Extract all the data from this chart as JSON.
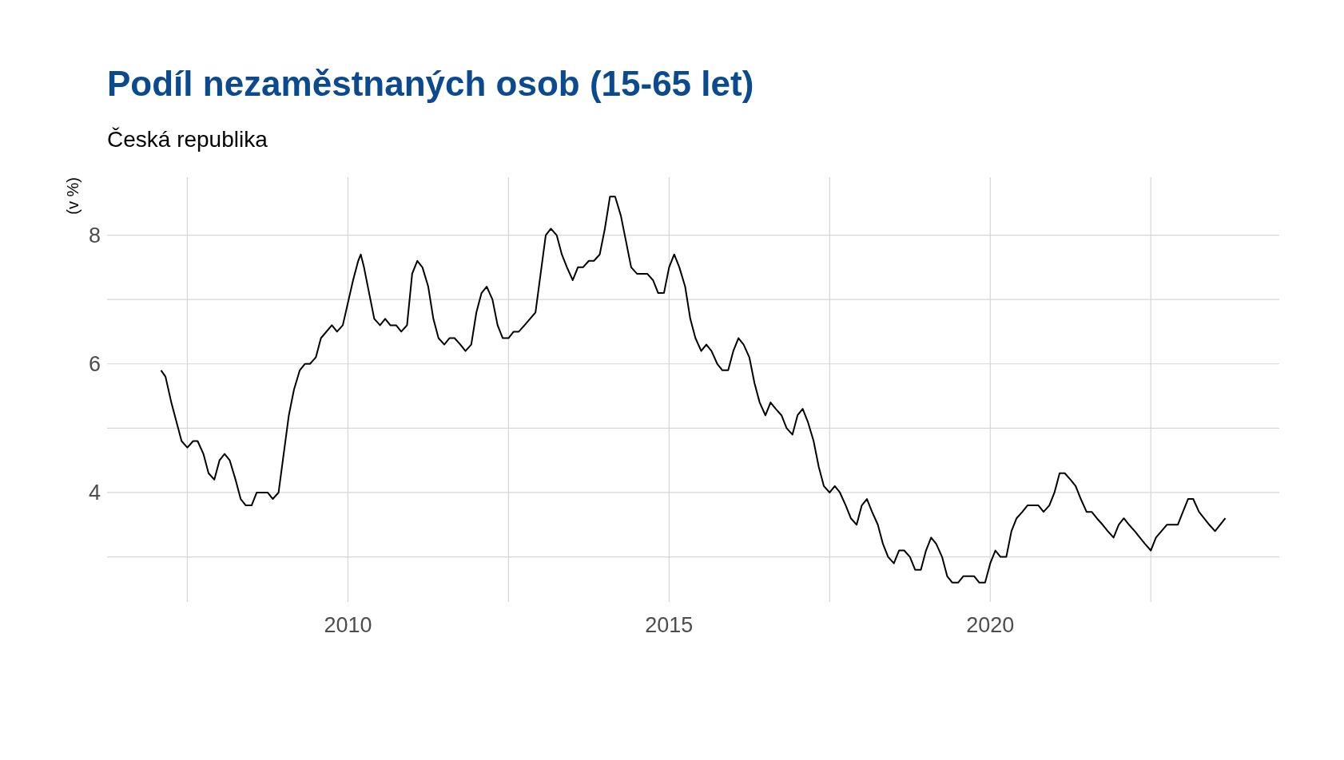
{
  "chart_data": {
    "type": "line",
    "title": "Podíl nezaměstnaných osob (15-65 let)",
    "subtitle": "Česká republika",
    "ylabel": "(v %)",
    "xlim": [
      2006.25,
      2024.5
    ],
    "ylim": [
      2.3,
      8.9
    ],
    "xticks": [
      {
        "value": 2007.5,
        "label": null
      },
      2010,
      {
        "value": 2012.5,
        "label": null
      },
      2015,
      {
        "value": 2017.5,
        "label": null
      },
      2020,
      {
        "value": 2022.5,
        "label": null
      }
    ],
    "yticks": [
      {
        "value": 3,
        "label": null
      },
      4,
      {
        "value": 5,
        "label": null
      },
      6,
      {
        "value": 7,
        "label": null
      },
      8
    ],
    "grid": true,
    "series": [
      {
        "color": "#000000",
        "x": [
          2007.09,
          2007.16,
          2007.25,
          2007.41,
          2007.5,
          2007.59,
          2007.66,
          2007.75,
          2007.83,
          2007.92,
          2008.0,
          2008.08,
          2008.16,
          2008.25,
          2008.33,
          2008.41,
          2008.5,
          2008.58,
          2008.75,
          2008.83,
          2008.92,
          2009.08,
          2009.16,
          2009.25,
          2009.33,
          2009.41,
          2009.5,
          2009.58,
          2009.75,
          2009.83,
          2009.92,
          2010.08,
          2010.16,
          2010.2,
          2010.25,
          2010.41,
          2010.5,
          2010.58,
          2010.66,
          2010.75,
          2010.83,
          2010.92,
          2011.0,
          2011.08,
          2011.16,
          2011.25,
          2011.33,
          2011.41,
          2011.5,
          2011.58,
          2011.66,
          2011.75,
          2011.83,
          2011.92,
          2012.0,
          2012.08,
          2012.16,
          2012.25,
          2012.33,
          2012.41,
          2012.5,
          2012.58,
          2012.66,
          2012.75,
          2012.92,
          2013.0,
          2013.08,
          2013.16,
          2013.25,
          2013.33,
          2013.41,
          2013.5,
          2013.58,
          2013.66,
          2013.75,
          2013.83,
          2013.92,
          2014.0,
          2014.08,
          2014.16,
          2014.25,
          2014.33,
          2014.41,
          2014.5,
          2014.66,
          2014.75,
          2014.83,
          2014.92,
          2015.0,
          2015.08,
          2015.16,
          2015.25,
          2015.33,
          2015.41,
          2015.5,
          2015.58,
          2015.66,
          2015.75,
          2015.83,
          2015.92,
          2016.0,
          2016.08,
          2016.16,
          2016.25,
          2016.33,
          2016.41,
          2016.5,
          2016.58,
          2016.66,
          2016.75,
          2016.83,
          2016.92,
          2017.0,
          2017.08,
          2017.16,
          2017.25,
          2017.33,
          2017.41,
          2017.5,
          2017.58,
          2017.66,
          2017.75,
          2017.83,
          2017.92,
          2018.0,
          2018.08,
          2018.16,
          2018.25,
          2018.33,
          2018.41,
          2018.5,
          2018.58,
          2018.66,
          2018.75,
          2018.83,
          2018.92,
          2019.0,
          2019.08,
          2019.16,
          2019.25,
          2019.33,
          2019.41,
          2019.5,
          2019.58,
          2019.75,
          2019.83,
          2019.92,
          2020.0,
          2020.08,
          2020.16,
          2020.25,
          2020.33,
          2020.41,
          2020.5,
          2020.58,
          2020.75,
          2020.83,
          2020.92,
          2021.0,
          2021.08,
          2021.16,
          2021.25,
          2021.33,
          2021.41,
          2021.5,
          2021.58,
          2021.66,
          2021.75,
          2021.83,
          2021.92,
          2022.0,
          2022.08,
          2022.16,
          2022.25,
          2022.33,
          2022.41,
          2022.5,
          2022.58,
          2022.75,
          2022.92,
          2023.0,
          2023.08,
          2023.16,
          2023.25,
          2023.41,
          2023.5,
          2023.66
        ],
        "values": [
          5.9,
          5.8,
          5.4,
          4.8,
          4.7,
          4.8,
          4.8,
          4.6,
          4.3,
          4.2,
          4.5,
          4.6,
          4.5,
          4.2,
          3.9,
          3.8,
          3.8,
          4.0,
          4.0,
          3.9,
          4.0,
          5.2,
          5.6,
          5.9,
          6.0,
          6.0,
          6.1,
          6.4,
          6.6,
          6.5,
          6.6,
          7.3,
          7.6,
          7.7,
          7.5,
          6.7,
          6.6,
          6.7,
          6.6,
          6.6,
          6.5,
          6.6,
          7.4,
          7.6,
          7.5,
          7.2,
          6.7,
          6.4,
          6.3,
          6.4,
          6.4,
          6.3,
          6.2,
          6.3,
          6.8,
          7.1,
          7.2,
          7.0,
          6.6,
          6.4,
          6.4,
          6.5,
          6.5,
          6.6,
          6.8,
          7.4,
          8.0,
          8.1,
          8.0,
          7.7,
          7.5,
          7.3,
          7.5,
          7.5,
          7.6,
          7.6,
          7.7,
          8.1,
          8.6,
          8.6,
          8.3,
          7.9,
          7.5,
          7.4,
          7.4,
          7.3,
          7.1,
          7.1,
          7.5,
          7.7,
          7.5,
          7.2,
          6.7,
          6.4,
          6.2,
          6.3,
          6.2,
          6.0,
          5.9,
          5.9,
          6.2,
          6.4,
          6.3,
          6.1,
          5.7,
          5.4,
          5.2,
          5.4,
          5.3,
          5.2,
          5.0,
          4.9,
          5.2,
          5.3,
          5.1,
          4.8,
          4.4,
          4.1,
          4.0,
          4.1,
          4.0,
          3.8,
          3.6,
          3.5,
          3.8,
          3.9,
          3.7,
          3.5,
          3.2,
          3.0,
          2.9,
          3.1,
          3.1,
          3.0,
          2.8,
          2.8,
          3.1,
          3.3,
          3.2,
          3.0,
          2.7,
          2.6,
          2.6,
          2.7,
          2.7,
          2.6,
          2.6,
          2.9,
          3.1,
          3.0,
          3.0,
          3.4,
          3.6,
          3.7,
          3.8,
          3.8,
          3.7,
          3.8,
          4.0,
          4.3,
          4.3,
          4.2,
          4.1,
          3.9,
          3.7,
          3.7,
          3.6,
          3.5,
          3.4,
          3.3,
          3.5,
          3.6,
          3.5,
          3.4,
          3.3,
          3.2,
          3.1,
          3.3,
          3.5,
          3.5,
          3.7,
          3.9,
          3.9,
          3.7,
          3.5,
          3.4,
          3.6
        ]
      }
    ]
  }
}
